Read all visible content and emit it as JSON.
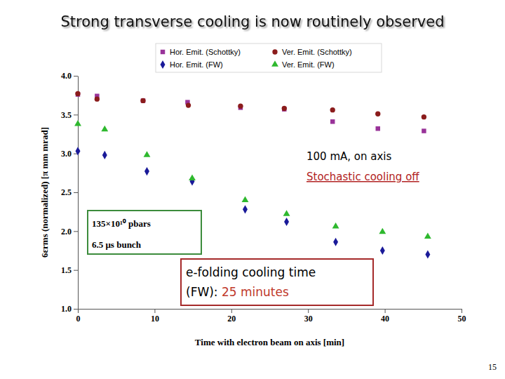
{
  "chart_data": {
    "type": "scatter",
    "title": "Strong transverse cooling is now routinely observed",
    "x_label": "Time with electron beam on axis [min]",
    "y_label": "6εrms (normalized) [π mm mrad]",
    "xlim": [
      0,
      50
    ],
    "xticks": [
      0,
      10,
      20,
      30,
      40,
      50
    ],
    "ylim": [
      1,
      4
    ],
    "yticks": [
      {
        "value": 1,
        "label": "1.0"
      },
      1.5,
      {
        "value": 2,
        "label": "2.0"
      },
      2.5,
      {
        "value": 3,
        "label": "3.0"
      },
      3.5,
      {
        "value": 4,
        "label": "4.0"
      }
    ],
    "grid": false,
    "legend": "top",
    "series": [
      {
        "name": "Hor. Emit. (Schottky)",
        "color": "#993399",
        "marker": "square",
        "x": [
          0,
          2.5,
          8.5,
          14.3,
          21.2,
          26.9,
          33.2,
          39.1,
          45.1
        ],
        "values": [
          3.76,
          3.74,
          3.68,
          3.66,
          3.59,
          3.57,
          3.41,
          3.32,
          3.29
        ]
      },
      {
        "name": "Ver. Emit. (Schottky)",
        "color": "#8b1c1c",
        "marker": "circle",
        "x": [
          0,
          2.5,
          8.5,
          14.4,
          21.2,
          26.9,
          33.2,
          39.1,
          45.1
        ],
        "values": [
          3.77,
          3.7,
          3.68,
          3.62,
          3.61,
          3.58,
          3.56,
          3.51,
          3.47
        ]
      },
      {
        "name": "Hor. Emit. (FW)",
        "color": "#1a1a99",
        "marker": "diamond",
        "x": [
          0,
          3.5,
          9,
          14.9,
          21.8,
          27.2,
          33.6,
          39.7,
          45.6
        ],
        "values": [
          3.03,
          2.98,
          2.77,
          2.64,
          2.28,
          2.12,
          1.86,
          1.75,
          1.7
        ]
      },
      {
        "name": "Ver. Emit. (FW)",
        "color": "#2eb82e",
        "marker": "triangle",
        "x": [
          0,
          3.5,
          9,
          14.9,
          21.8,
          27.2,
          33.6,
          39.7,
          45.6
        ],
        "values": [
          3.38,
          3.31,
          2.98,
          2.68,
          2.4,
          2.22,
          2.06,
          1.99,
          1.93
        ]
      }
    ],
    "annotations": [
      "100 mA, on axis",
      "Stochastic cooling off",
      "135×10¹⁰ pbars",
      "6.5 μs bunch",
      "e-folding cooling time",
      "(FW): ",
      "25 minutes"
    ],
    "slide_number": 15
  }
}
